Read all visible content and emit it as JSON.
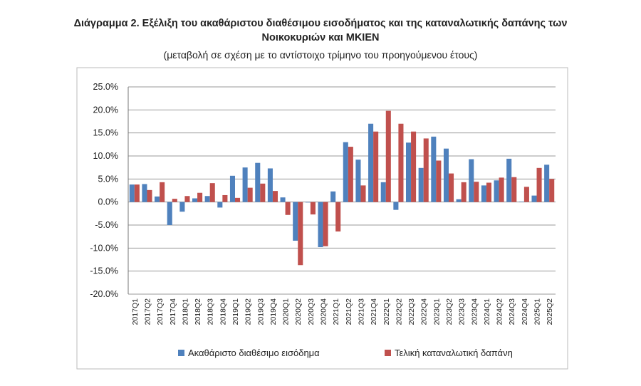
{
  "chart_data": {
    "type": "bar",
    "title": [
      "Διάγραμμα 2. Εξέλιξη του ακαθάριστου διαθέσιμου εισοδήματος και της καταναλωτικής δαπάνης των",
      "Νοικοκυριών και ΜΚΙΕΝ"
    ],
    "subtitle": "(μεταβολή σε σχέση με το αντίστοιχο τρίμηνο του προηγούμενου έτους)",
    "categories": [
      "2017Q1",
      "2017Q2",
      "2017Q3",
      "2017Q4",
      "2018Q1",
      "2018Q2",
      "2018Q3",
      "2018Q4",
      "2019Q1",
      "2019Q2",
      "2019Q3",
      "2019Q4",
      "2020Q1",
      "2020Q2",
      "2020Q3",
      "2020Q4",
      "2021Q1",
      "2021Q2",
      "2021Q3",
      "2021Q4",
      "2022Q1",
      "2022Q2",
      "2022Q3",
      "2022Q4",
      "2023Q1",
      "2023Q2",
      "2023Q3",
      "2023Q4",
      "2024Q1",
      "2024Q2",
      "2024Q3",
      "2024Q4",
      "2025Q1",
      "2025Q2"
    ],
    "series": [
      {
        "name": "Ακαθάριστο διαθέσιμο εισόδημα",
        "color": "#4f81bd",
        "values": [
          3.8,
          3.9,
          1.2,
          -5.0,
          -2.1,
          0.8,
          1.3,
          -1.2,
          5.7,
          7.5,
          8.5,
          7.3,
          1.0,
          -8.4,
          -0.1,
          -9.8,
          2.3,
          13.0,
          9.2,
          17.0,
          4.3,
          -1.7,
          12.9,
          7.4,
          14.2,
          11.6,
          0.6,
          9.3,
          3.6,
          4.7,
          9.4,
          0.1,
          1.4,
          8.1
        ]
      },
      {
        "name": "Τελική καταναλωτική δαπάνη",
        "color": "#c0504d",
        "values": [
          3.8,
          2.6,
          4.3,
          0.7,
          1.3,
          2.0,
          4.1,
          1.5,
          0.9,
          3.1,
          4.0,
          2.4,
          -2.8,
          -13.7,
          -2.7,
          -9.6,
          -6.4,
          12.0,
          3.6,
          15.3,
          19.8,
          17.0,
          15.3,
          13.8,
          9.0,
          6.2,
          4.3,
          4.4,
          4.2,
          5.3,
          5.4,
          3.3,
          7.4,
          5.0
        ]
      }
    ],
    "ylim": [
      -20,
      25
    ],
    "yticks": [
      {
        "value": -20,
        "label": "-20.0%"
      },
      {
        "value": -15,
        "label": "-15.0%"
      },
      {
        "value": -10,
        "label": "-10.0%"
      },
      {
        "value": -5,
        "label": "-5.0%"
      },
      {
        "value": 0,
        "label": "0.0%"
      },
      {
        "value": 5,
        "label": "5.0%"
      },
      {
        "value": 10,
        "label": "10.0%"
      },
      {
        "value": 15,
        "label": "15.0%"
      },
      {
        "value": 20,
        "label": "20.0%"
      },
      {
        "value": 25,
        "label": "25.0%"
      }
    ],
    "grid": true
  }
}
